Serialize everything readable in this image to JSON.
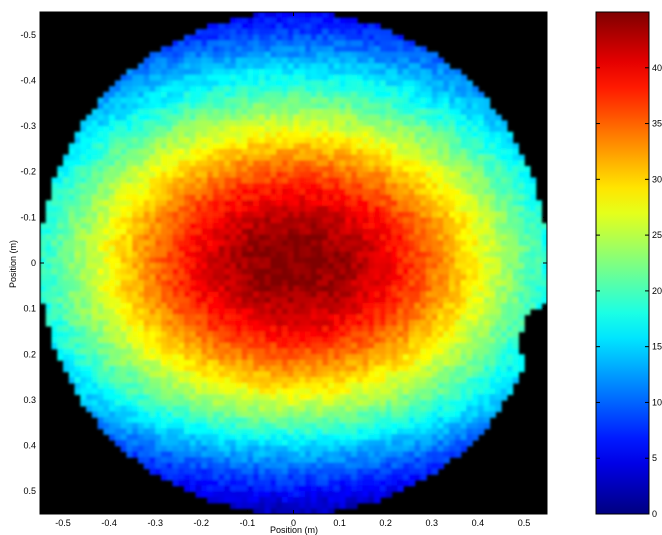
{
  "chart_data": {
    "type": "heatmap",
    "title": "",
    "xlabel": "Position (m)",
    "ylabel": "Position (m)",
    "xlim": [
      -0.55,
      0.55
    ],
    "ylim": [
      -0.55,
      0.55
    ],
    "y_reversed": true,
    "x_ticks": [
      -0.5,
      -0.4,
      -0.3,
      -0.2,
      -0.1,
      0,
      0.1,
      0.2,
      0.3,
      0.4,
      0.5
    ],
    "x_tick_labels": [
      "-0.5",
      "-0.4",
      "-0.3",
      "-0.2",
      "-0.1",
      "0",
      "0.1",
      "0.2",
      "0.3",
      "0.4",
      "0.5"
    ],
    "y_ticks": [
      -0.5,
      -0.4,
      -0.3,
      -0.2,
      -0.1,
      0,
      0.1,
      0.2,
      0.3,
      0.4,
      0.5
    ],
    "y_tick_labels": [
      "-0.5",
      "-0.4",
      "-0.3",
      "-0.2",
      "-0.1",
      "0",
      "0.1",
      "0.2",
      "0.3",
      "0.4",
      "0.5"
    ],
    "colormap": "jet",
    "background_color": "#000000",
    "disc_radius_m": 0.55,
    "peak": {
      "x": 0.0,
      "y": 0.0,
      "value": 44
    },
    "edge_value_range": [
      13,
      26
    ],
    "colorbar": {
      "range": [
        0,
        45
      ],
      "ticks": [
        0,
        5,
        10,
        15,
        20,
        25,
        30,
        35,
        40
      ],
      "tick_labels": [
        "0",
        "5",
        "10",
        "15",
        "20",
        "25",
        "30",
        "35",
        "40"
      ]
    },
    "grid": false
  }
}
